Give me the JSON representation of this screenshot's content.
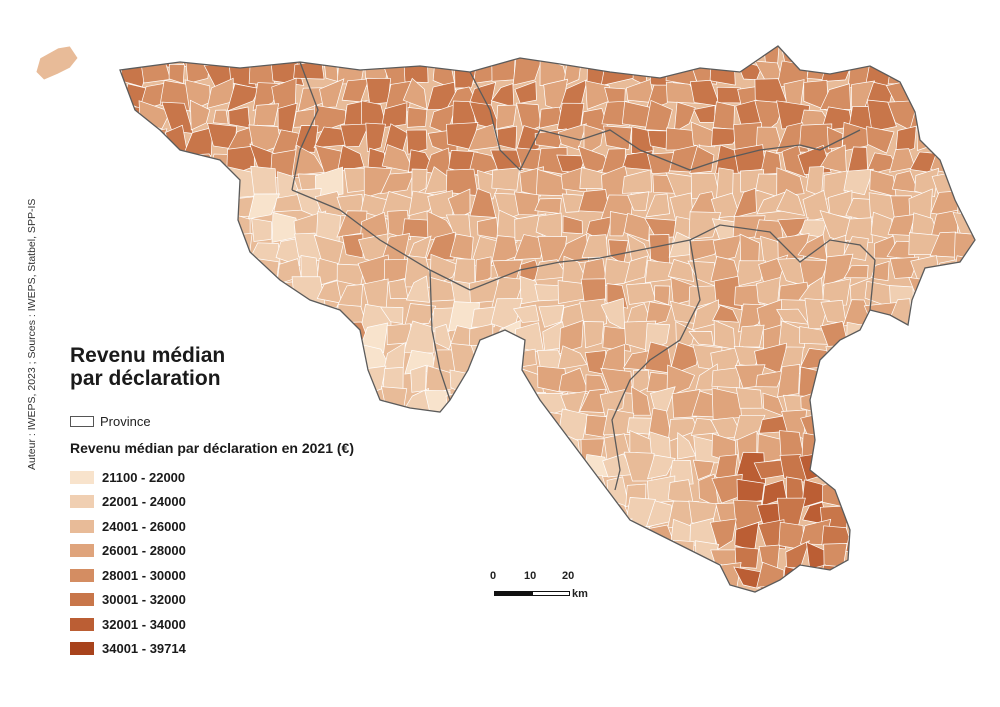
{
  "map": {
    "title_line1": "Revenu médian",
    "title_line2": "par déclaration",
    "credit": "Auteur : IWEPS, 2023 ; Sources : IWEPS, Statbel, SPP-IS",
    "province_label": "Province",
    "legend_title": "Revenu médian par déclaration en 2021 (€)",
    "classes": [
      {
        "label": "21100 - 22000",
        "color": "#f8e3cc"
      },
      {
        "label": "22001 - 24000",
        "color": "#f0cfb2"
      },
      {
        "label": "24001 - 26000",
        "color": "#e8bb98"
      },
      {
        "label": "26001 - 28000",
        "color": "#dfa47c"
      },
      {
        "label": "28001 - 30000",
        "color": "#d48d62"
      },
      {
        "label": "30001 - 32000",
        "color": "#c8764a"
      },
      {
        "label": "32001 - 34000",
        "color": "#bb5e34"
      },
      {
        "label": "34001 - 39714",
        "color": "#a8431c"
      }
    ],
    "scale": {
      "labels": [
        "0",
        "10",
        "20"
      ],
      "unit": "km"
    }
  }
}
